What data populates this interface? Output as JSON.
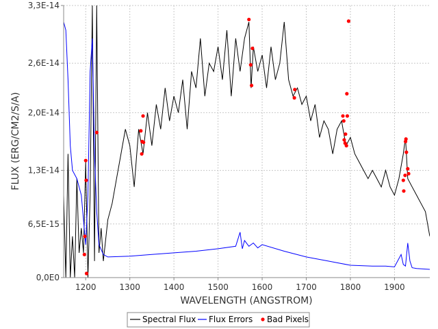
{
  "chart_data": {
    "type": "line",
    "title": "",
    "xlabel": "WAVELENGTH (ANGSTROM)",
    "ylabel": "FLUX (ERG/CM2/S/A)",
    "xlim": [
      1150,
      1980
    ],
    "ylim": [
      0,
      3.3e-14
    ],
    "grid": true,
    "legend_position": "bottom-center",
    "xticks": [
      1200,
      1300,
      1400,
      1500,
      1600,
      1700,
      1800,
      1900
    ],
    "xtick_labels": [
      "1200",
      "1300",
      "1400",
      "1500",
      "1600",
      "1700",
      "1800",
      "1900"
    ],
    "yticks": [
      0,
      6.5e-15,
      1.3e-14,
      2e-14,
      2.6e-14,
      3.3e-14
    ],
    "ytick_labels": [
      "0,0E0",
      "6,5E-15",
      "1,3E-14",
      "2,0E-14",
      "2,6E-14",
      "3,3E-14"
    ],
    "series": [
      {
        "name": "Spectral Flux",
        "color": "#000000",
        "x": [
          1150,
          1155,
          1160,
          1165,
          1170,
          1175,
          1180,
          1185,
          1190,
          1195,
          1200,
          1205,
          1210,
          1215,
          1220,
          1225,
          1230,
          1235,
          1240,
          1250,
          1260,
          1270,
          1280,
          1290,
          1300,
          1310,
          1320,
          1330,
          1340,
          1350,
          1360,
          1370,
          1380,
          1390,
          1400,
          1410,
          1420,
          1430,
          1440,
          1450,
          1460,
          1470,
          1480,
          1490,
          1500,
          1510,
          1520,
          1530,
          1540,
          1550,
          1560,
          1570,
          1575,
          1580,
          1590,
          1600,
          1610,
          1620,
          1630,
          1640,
          1650,
          1660,
          1670,
          1680,
          1690,
          1700,
          1710,
          1720,
          1730,
          1740,
          1750,
          1760,
          1770,
          1780,
          1790,
          1800,
          1810,
          1820,
          1830,
          1840,
          1850,
          1860,
          1870,
          1880,
          1890,
          1900,
          1910,
          1920,
          1925,
          1930,
          1940,
          1950,
          1960,
          1970,
          1980
        ],
        "values": [
          1e-14,
          0,
          1.5e-14,
          0,
          5e-15,
          0,
          1.2e-14,
          3e-15,
          6e-15,
          3e-15,
          1.4e-14,
          0,
          1e-14,
          3.3e-14,
          2e-15,
          3.3e-14,
          3e-15,
          6e-15,
          2e-15,
          7e-15,
          9e-15,
          1.2e-14,
          1.5e-14,
          1.8e-14,
          1.6e-14,
          1.1e-14,
          1.8e-14,
          1.5e-14,
          2e-14,
          1.6e-14,
          2.1e-14,
          1.8e-14,
          2.3e-14,
          1.9e-14,
          2.2e-14,
          2e-14,
          2.4e-14,
          1.8e-14,
          2.5e-14,
          2.3e-14,
          2.9e-14,
          2.2e-14,
          2.6e-14,
          2.5e-14,
          2.8e-14,
          2.4e-14,
          3e-14,
          2.2e-14,
          2.9e-14,
          2.5e-14,
          2.9e-14,
          3.1e-14,
          2.3e-14,
          2.8e-14,
          2.5e-14,
          2.7e-14,
          2.3e-14,
          2.8e-14,
          2.4e-14,
          2.6e-14,
          3.1e-14,
          2.4e-14,
          2.2e-14,
          2.3e-14,
          2.1e-14,
          2.2e-14,
          1.9e-14,
          2.1e-14,
          1.7e-14,
          1.9e-14,
          1.8e-14,
          1.5e-14,
          1.8e-14,
          1.9e-14,
          1.6e-14,
          1.7e-14,
          1.5e-14,
          1.4e-14,
          1.3e-14,
          1.2e-14,
          1.3e-14,
          1.2e-14,
          1.1e-14,
          1.3e-14,
          1.1e-14,
          1e-14,
          1.2e-14,
          1.5e-14,
          1.7e-14,
          1.2e-14,
          1.1e-14,
          1e-14,
          9e-15,
          8e-15,
          5e-15
        ]
      },
      {
        "name": "Flux Errors",
        "color": "#0000ff",
        "x": [
          1150,
          1155,
          1160,
          1165,
          1170,
          1180,
          1190,
          1195,
          1200,
          1205,
          1210,
          1215,
          1220,
          1225,
          1230,
          1240,
          1250,
          1300,
          1350,
          1400,
          1450,
          1500,
          1540,
          1550,
          1555,
          1560,
          1570,
          1580,
          1590,
          1600,
          1650,
          1700,
          1750,
          1800,
          1850,
          1880,
          1900,
          1915,
          1920,
          1925,
          1930,
          1935,
          1940,
          1950,
          1980
        ],
        "values": [
          3.1e-14,
          3e-14,
          2.4e-14,
          1.6e-14,
          1.3e-14,
          1.2e-14,
          1e-14,
          7e-15,
          4e-15,
          1e-14,
          2.5e-14,
          2.9e-14,
          1.5e-14,
          8e-15,
          4e-15,
          2.8e-15,
          2.5e-15,
          2.6e-15,
          2.8e-15,
          3e-15,
          3.2e-15,
          3.5e-15,
          3.8e-15,
          5.5e-15,
          3.5e-15,
          4.5e-15,
          3.8e-15,
          4.2e-15,
          3.6e-15,
          4e-15,
          3.2e-15,
          2.5e-15,
          2e-15,
          1.5e-15,
          1.4e-15,
          1.4e-15,
          1.3e-15,
          2.8e-15,
          1.6e-15,
          1.4e-15,
          4.2e-15,
          2e-15,
          1.2e-15,
          1.1e-15,
          1e-15
        ]
      },
      {
        "name": "Bad Pixels",
        "color": "#ff0000",
        "type": "scatter",
        "x": [
          1197,
          1198,
          1200,
          1201,
          1202,
          1225,
          1325,
          1327,
          1328,
          1330,
          1331,
          1570,
          1574,
          1576,
          1578,
          1673,
          1674,
          1783,
          1785,
          1786,
          1788,
          1789,
          1791,
          1792,
          1793,
          1796,
          1920,
          1921,
          1924,
          1925,
          1926,
          1927,
          1930,
          1932
        ],
        "values": [
          2.8e-15,
          5e-15,
          1.42e-14,
          1.18e-14,
          5e-16,
          1.76e-14,
          1.78e-14,
          1.5e-14,
          1.65e-14,
          1.96e-14,
          1.64e-14,
          3.13e-14,
          2.58e-14,
          2.33e-14,
          2.78e-14,
          2.18e-14,
          2.28e-14,
          1.96e-14,
          1.9e-14,
          1.67e-14,
          1.63e-14,
          1.74e-14,
          1.6e-14,
          2.23e-14,
          1.96e-14,
          3.11e-14,
          1.18e-14,
          1.05e-14,
          1.24e-14,
          1.65e-14,
          1.68e-14,
          1.52e-14,
          1.32e-14,
          1.26e-14
        ]
      }
    ]
  }
}
